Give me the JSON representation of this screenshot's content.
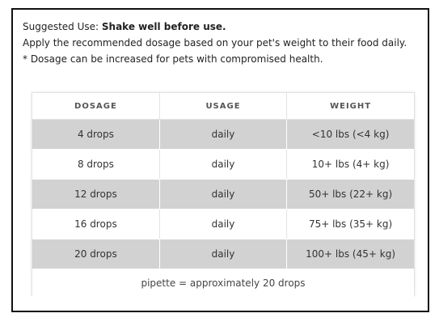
{
  "intro": {
    "suggested_prefix": "Suggested Use: ",
    "suggested_bold": "Shake well before use.",
    "line2": "Apply the recommended dosage based on your pet's weight to their food daily.",
    "line3": "* Dosage can be increased for pets with compromised health."
  },
  "table": {
    "headers": [
      "DOSAGE",
      "USAGE",
      "WEIGHT"
    ],
    "rows": [
      {
        "dosage": "4 drops",
        "usage": "daily",
        "weight": "<10 lbs (<4 kg)"
      },
      {
        "dosage": "8 drops",
        "usage": "daily",
        "weight": "10+ lbs (4+ kg)"
      },
      {
        "dosage": "12 drops",
        "usage": "daily",
        "weight": "50+ lbs (22+ kg)"
      },
      {
        "dosage": "16 drops",
        "usage": "daily",
        "weight": "75+ lbs (35+ kg)"
      },
      {
        "dosage": "20 drops",
        "usage": "daily",
        "weight": "100+ lbs (45+ kg)"
      }
    ],
    "footnote": "pipette = approximately 20 drops"
  },
  "colors": {
    "shaded_row": "#d2d2d2",
    "border": "#111111"
  }
}
